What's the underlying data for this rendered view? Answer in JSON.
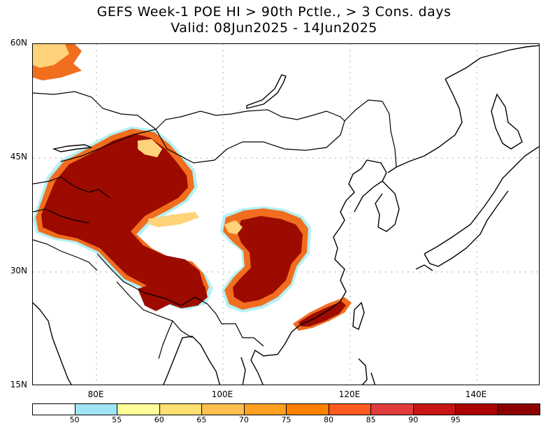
{
  "title": {
    "line1": "GEFS Week-1 POE HI > 90th Pctle., > 3 Cons. days",
    "line2": "Valid: 08Jun2025 - 14Jun2025"
  },
  "map": {
    "lon_range": [
      70,
      150
    ],
    "lat_range": [
      15,
      60
    ],
    "lat_labels": [
      "60N",
      "45N",
      "30N",
      "15N"
    ],
    "lon_labels": [
      "80E",
      "100E",
      "120E",
      "140E"
    ],
    "gridlines": "dotted"
  },
  "colorbar": {
    "colors": [
      "#ffffff",
      "#9ee6f5",
      "#ffff99",
      "#ffe070",
      "#ffc04d",
      "#ffa020",
      "#ff8000",
      "#ff5a1e",
      "#e03c3c",
      "#c81414",
      "#aa0000",
      "#8c0000"
    ],
    "labels": [
      "50",
      "55",
      "60",
      "65",
      "70",
      "75",
      "80",
      "85",
      "90",
      "95"
    ]
  },
  "colors": {
    "coast": "#000000",
    "high": "#9c0a00",
    "mid": "#d21e00",
    "orange": "#f06e1e",
    "light": "#ffd37a",
    "pale": "#fff0a8",
    "cyan": "#b4f0f5"
  }
}
